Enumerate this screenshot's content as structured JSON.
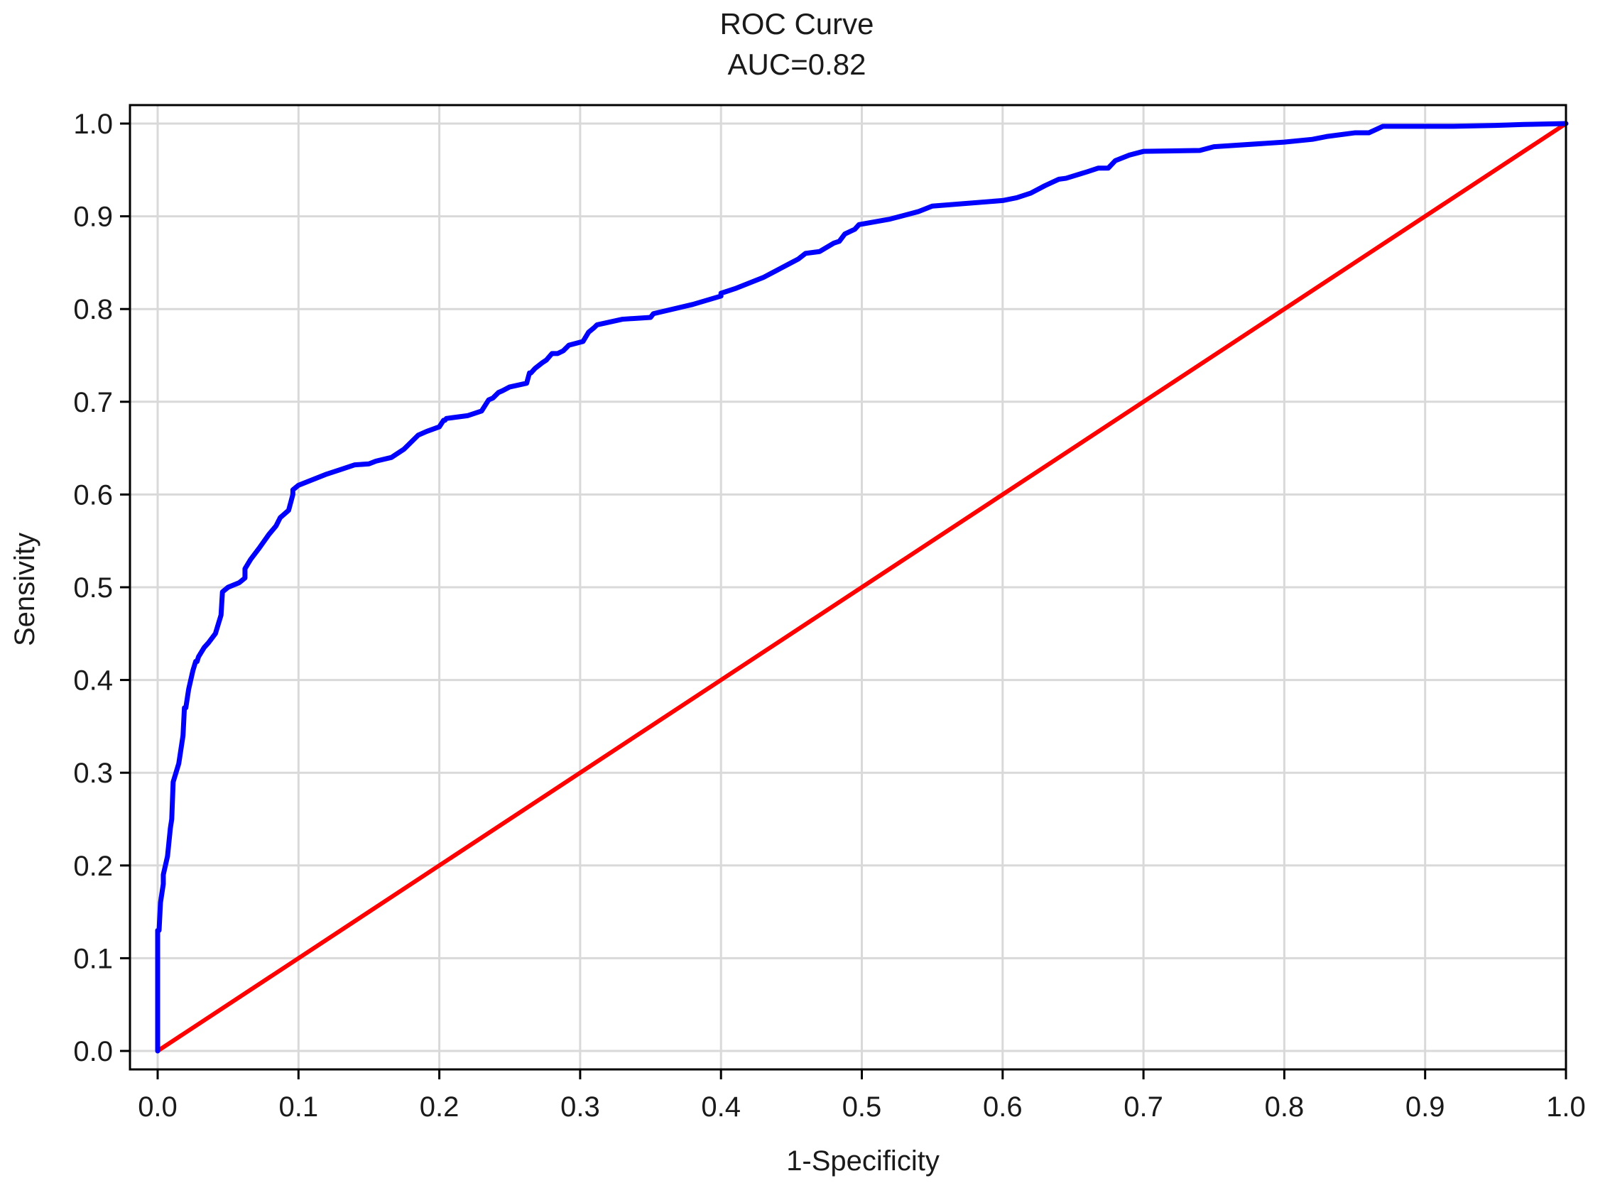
{
  "chart_data": {
    "type": "line",
    "title": "ROC Curve",
    "subtitle": "AUC=0.82",
    "xlabel": "1-Specificity",
    "ylabel": "Sensivity",
    "xlim": [
      0.0,
      1.0
    ],
    "ylim": [
      0.0,
      1.0
    ],
    "x_ticks": [
      "0.0",
      "0.1",
      "0.2",
      "0.3",
      "0.4",
      "0.5",
      "0.6",
      "0.7",
      "0.8",
      "0.9",
      "1.0"
    ],
    "y_ticks": [
      "0.0",
      "0.1",
      "0.2",
      "0.3",
      "0.4",
      "0.5",
      "0.6",
      "0.7",
      "0.8",
      "0.9",
      "1.0"
    ],
    "grid": true,
    "legend": "none",
    "series": [
      {
        "color": "#0000ff",
        "x": [
          0.0,
          0.0,
          0.001,
          0.002,
          0.004,
          0.004,
          0.007,
          0.009,
          0.01,
          0.011,
          0.015,
          0.018,
          0.019,
          0.02,
          0.022,
          0.025,
          0.027,
          0.028,
          0.029,
          0.033,
          0.036,
          0.041,
          0.045,
          0.046,
          0.05,
          0.058,
          0.062,
          0.062,
          0.066,
          0.072,
          0.079,
          0.084,
          0.087,
          0.093,
          0.096,
          0.096,
          0.1,
          0.11,
          0.12,
          0.13,
          0.14,
          0.15,
          0.155,
          0.166,
          0.175,
          0.185,
          0.191,
          0.2,
          0.203,
          0.204,
          0.205,
          0.22,
          0.23,
          0.235,
          0.238,
          0.242,
          0.245,
          0.25,
          0.262,
          0.264,
          0.265,
          0.268,
          0.273,
          0.276,
          0.28,
          0.284,
          0.288,
          0.292,
          0.302,
          0.306,
          0.31,
          0.312,
          0.33,
          0.35,
          0.352,
          0.38,
          0.4,
          0.4,
          0.41,
          0.42,
          0.43,
          0.44,
          0.45,
          0.455,
          0.46,
          0.47,
          0.48,
          0.484,
          0.488,
          0.495,
          0.498,
          0.52,
          0.54,
          0.55,
          0.6,
          0.61,
          0.62,
          0.63,
          0.64,
          0.645,
          0.66,
          0.668,
          0.675,
          0.68,
          0.69,
          0.7,
          0.74,
          0.75,
          0.8,
          0.82,
          0.83,
          0.85,
          0.86,
          0.87,
          0.92,
          0.95,
          0.97,
          1.0
        ],
        "y": [
          0.0,
          0.13,
          0.13,
          0.16,
          0.18,
          0.19,
          0.21,
          0.24,
          0.25,
          0.29,
          0.31,
          0.34,
          0.37,
          0.37,
          0.39,
          0.41,
          0.42,
          0.42,
          0.425,
          0.435,
          0.44,
          0.45,
          0.47,
          0.495,
          0.5,
          0.505,
          0.51,
          0.52,
          0.53,
          0.542,
          0.557,
          0.566,
          0.575,
          0.583,
          0.6,
          0.605,
          0.61,
          0.616,
          0.622,
          0.627,
          0.632,
          0.633,
          0.636,
          0.64,
          0.649,
          0.664,
          0.668,
          0.673,
          0.68,
          0.68,
          0.682,
          0.685,
          0.69,
          0.702,
          0.704,
          0.71,
          0.712,
          0.716,
          0.72,
          0.731,
          0.731,
          0.736,
          0.742,
          0.745,
          0.752,
          0.752,
          0.755,
          0.761,
          0.765,
          0.775,
          0.78,
          0.783,
          0.789,
          0.791,
          0.795,
          0.805,
          0.814,
          0.817,
          0.822,
          0.828,
          0.834,
          0.842,
          0.85,
          0.854,
          0.86,
          0.862,
          0.871,
          0.873,
          0.881,
          0.886,
          0.891,
          0.897,
          0.905,
          0.911,
          0.917,
          0.92,
          0.925,
          0.933,
          0.94,
          0.941,
          0.948,
          0.952,
          0.952,
          0.96,
          0.966,
          0.97,
          0.971,
          0.975,
          0.98,
          0.983,
          0.986,
          0.99,
          0.99,
          0.997,
          0.997,
          0.998,
          0.999,
          1.0
        ]
      },
      {
        "color": "#ff0000",
        "x": [
          0.0,
          1.0
        ],
        "y": [
          0.0,
          1.0
        ]
      }
    ]
  }
}
